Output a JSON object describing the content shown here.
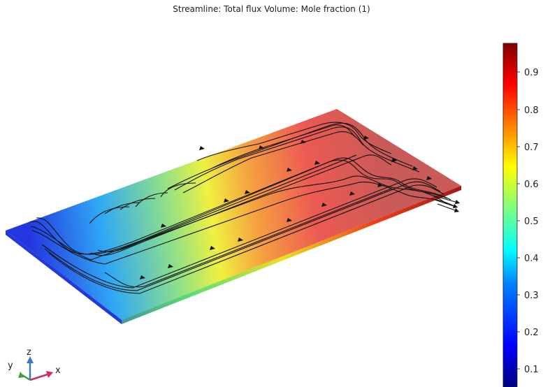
{
  "title": "Streamline: Total flux  Volume: Mole fraction (1)",
  "colors": {
    "colormap": [
      "#000080",
      "#0000ff",
      "#0080ff",
      "#00ffff",
      "#80ff80",
      "#ffff00",
      "#ff8000",
      "#ff0000",
      "#800000"
    ],
    "streamline": "#111111"
  },
  "axis_triad": {
    "x": "x",
    "y": "y",
    "z": "z"
  },
  "chart_data": {
    "type": "heatmap",
    "title": "Streamline: Total flux  Volume: Mole fraction (1)",
    "colorbar": {
      "ticks": [
        "0.1",
        "0.2",
        "0.3",
        "0.4",
        "0.5",
        "0.6",
        "0.7",
        "0.8",
        "0.9"
      ],
      "range": [
        0.04,
        0.98
      ]
    }
  }
}
